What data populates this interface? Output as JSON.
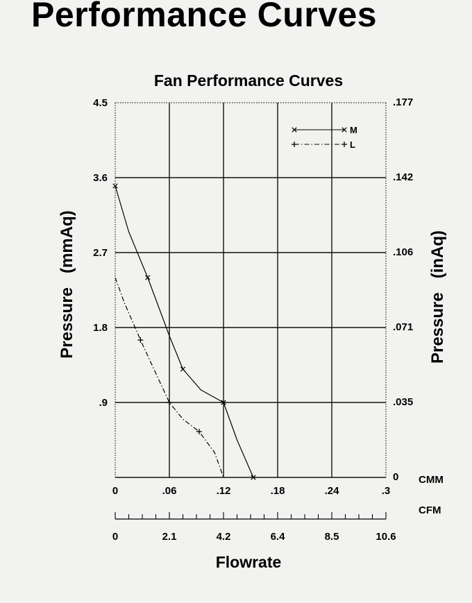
{
  "page": {
    "title": "Performance Curves"
  },
  "chart_data": {
    "type": "line",
    "title": "Fan Performance Curves",
    "xlabel": "Flowrate",
    "ylabel": "Pressure   (mmAq)",
    "y2label": "Pressure   (inAq)",
    "xlim": [
      0,
      0.3
    ],
    "ylim": [
      0,
      4.5
    ],
    "grid": true,
    "x_ticks": [
      0,
      0.06,
      0.12,
      0.18,
      0.24,
      0.3
    ],
    "x_tick_labels": [
      "0",
      ".06",
      ".12",
      ".18",
      ".24",
      ".3"
    ],
    "x_unit": "CMM",
    "x2_tick_labels": [
      "0",
      "2.1",
      "4.2",
      "6.4",
      "8.5",
      "10.6"
    ],
    "x2_unit": "CFM",
    "y_ticks": [
      0.9,
      1.8,
      2.7,
      3.6,
      4.5
    ],
    "y_tick_labels": [
      ".9",
      "1.8",
      "2.7",
      "3.6",
      "4.5"
    ],
    "y2_tick_labels": [
      "0",
      ".035",
      ".071",
      ".106",
      ".142",
      ".177"
    ],
    "legend_position": "top-right",
    "series": [
      {
        "name": "M",
        "style": "solid",
        "marker": "x",
        "x": [
          0,
          0.015,
          0.036,
          0.06,
          0.075,
          0.095,
          0.12,
          0.135,
          0.153
        ],
        "y": [
          3.5,
          2.95,
          2.4,
          1.7,
          1.3,
          1.05,
          0.9,
          0.45,
          0
        ],
        "marker_indices": [
          0,
          2,
          4,
          6,
          8
        ]
      },
      {
        "name": "L",
        "style": "dashdot",
        "marker": "+",
        "x": [
          0,
          0.01,
          0.028,
          0.045,
          0.06,
          0.075,
          0.093,
          0.11,
          0.12
        ],
        "y": [
          2.4,
          2.1,
          1.65,
          1.25,
          0.9,
          0.7,
          0.55,
          0.3,
          0
        ],
        "marker_indices": [
          2,
          4,
          6
        ]
      }
    ]
  }
}
